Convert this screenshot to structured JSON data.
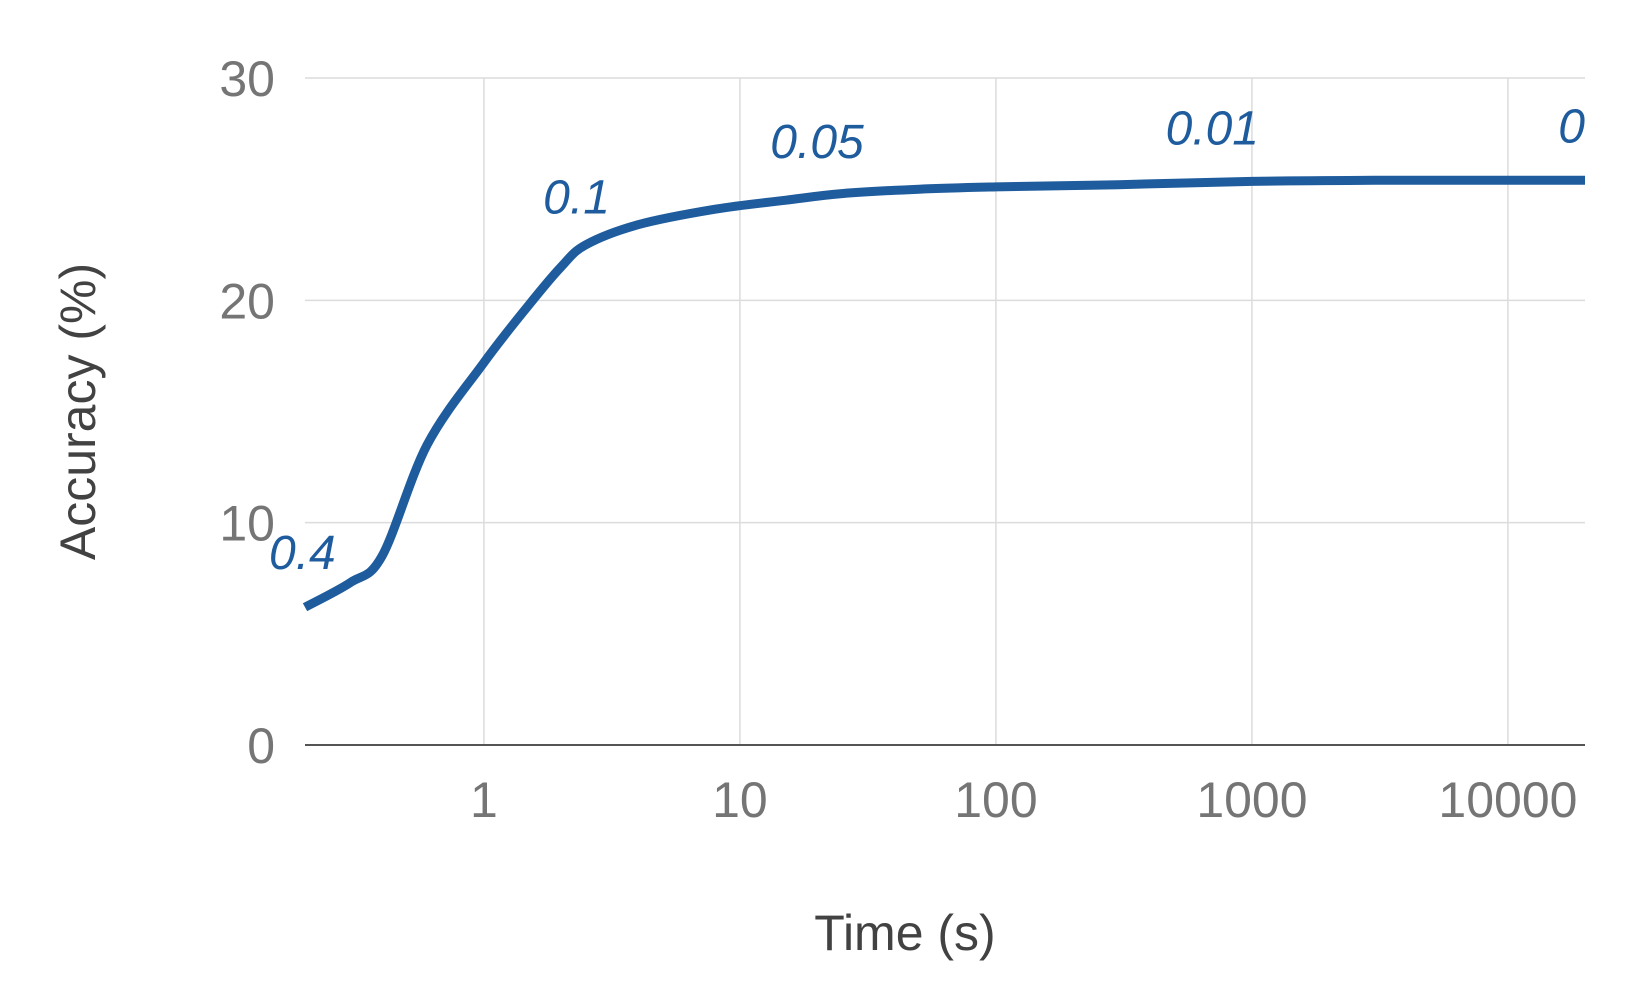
{
  "chart_data": {
    "type": "line",
    "xlabel": "Time (s)",
    "ylabel": "Accuracy (%)",
    "x_scale": "log",
    "xlim": [
      0.2,
      20000
    ],
    "ylim": [
      0,
      30
    ],
    "x_ticks": [
      1,
      10,
      100,
      1000,
      10000
    ],
    "x_tick_labels": [
      "1",
      "10",
      "100",
      "1000",
      "10000"
    ],
    "y_ticks": [
      0,
      10,
      20,
      30
    ],
    "y_tick_labels": [
      "0",
      "10",
      "20",
      "30"
    ],
    "grid": true,
    "legend": "none",
    "line_color": "#1f5c9e",
    "series": [
      {
        "x": [
          0.2,
          0.3,
          0.4,
          0.6,
          1,
          1.5,
          2,
          2.5,
          4,
          8,
          15,
          25,
          50,
          100,
          300,
          1000,
          3000,
          10000,
          20000
        ],
        "y": [
          6.2,
          7.3,
          8.5,
          13.5,
          17.2,
          19.8,
          21.5,
          22.5,
          23.4,
          24.1,
          24.5,
          24.8,
          25.0,
          25.1,
          25.2,
          25.35,
          25.4,
          25.4,
          25.4
        ]
      }
    ],
    "annotations": [
      {
        "text": "0.4",
        "x": 0.2,
        "y": 6.2
      },
      {
        "text": "0.1",
        "x": 2.3,
        "y": 22.2
      },
      {
        "text": "0.05",
        "x": 20,
        "y": 24.7
      },
      {
        "text": "0.01",
        "x": 700,
        "y": 25.3
      },
      {
        "text": "0",
        "x": 20000,
        "y": 25.4
      }
    ]
  }
}
